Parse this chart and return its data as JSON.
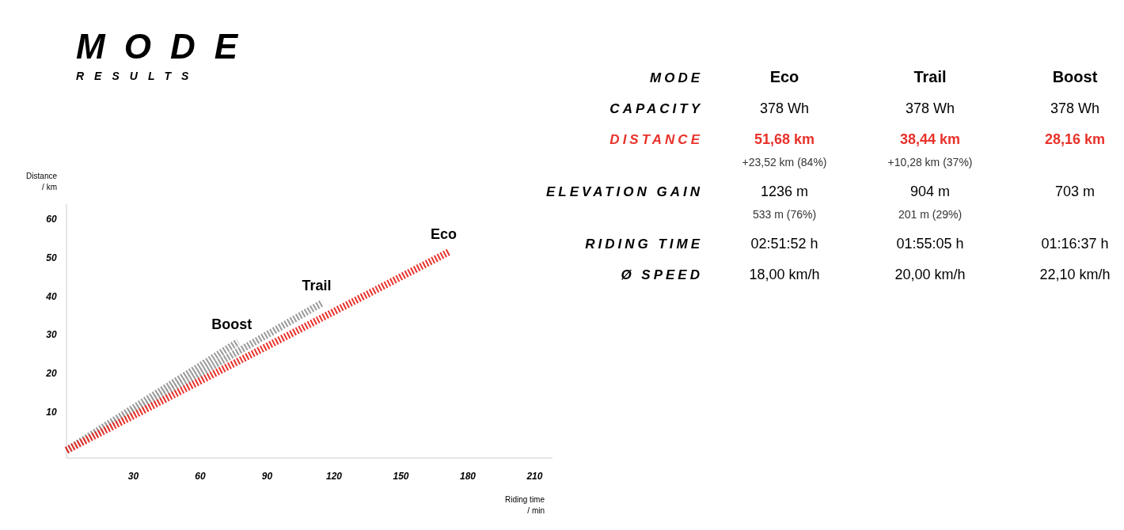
{
  "chart_data": [
    {
      "type": "line",
      "title": "MODE",
      "subtitle": "RESULTS",
      "xlabel": "Riding time\n/ min",
      "ylabel": "Distance\n/ km",
      "xlim": [
        0,
        218
      ],
      "ylim": [
        -2,
        64
      ],
      "xticks": [
        30,
        60,
        90,
        120,
        150,
        180,
        210
      ],
      "yticks": [
        10,
        20,
        30,
        40,
        50,
        60
      ],
      "line_style": "dashed",
      "series": [
        {
          "name": "Eco",
          "color": "#e8322b",
          "x": [
            0,
            172
          ],
          "values": [
            0,
            51.7
          ]
        },
        {
          "name": "Trail",
          "color": "#9a9a9a",
          "x": [
            0,
            115
          ],
          "values": [
            0,
            38.4
          ]
        },
        {
          "name": "Boost",
          "color": "#9a9a9a",
          "x": [
            0,
            77
          ],
          "values": [
            0,
            28.2
          ]
        }
      ]
    },
    {
      "type": "other",
      "title": "MODE",
      "categories": [
        "Eco",
        "Trail",
        "Boost"
      ],
      "y_categories": [
        "CAPACITY",
        "DISTANCE",
        "ELEVATION GAIN",
        "RIDING TIME",
        "Ø SPEED"
      ],
      "colors": [
        "#000000",
        "#e8322b",
        "#000000",
        "#000000",
        "#000000"
      ],
      "cell_labels": [
        [
          "378 Wh",
          "378 Wh",
          "378 Wh"
        ],
        [
          "51,68 km\n+23,52 km (84%)",
          "38,44 km\n+10,28 km (37%)",
          "28,16 km"
        ],
        [
          "1236 m\n533 m (76%)",
          "904 m\n201 m (29%)",
          "703 m"
        ],
        [
          "02:51:52 h",
          "01:55:05 h",
          "01:16:37 h"
        ],
        [
          "18,00 km/h",
          "20,00 km/h",
          "22,10 km/h"
        ]
      ]
    }
  ]
}
